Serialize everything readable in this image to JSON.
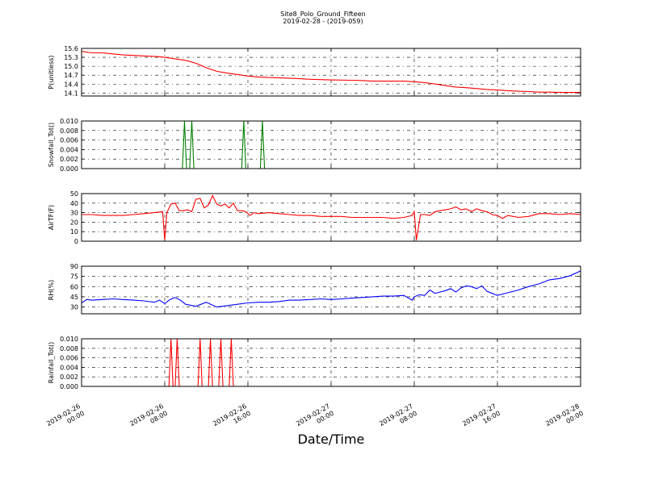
{
  "chart_data": {
    "title": "Site8_Polo_Ground_Fifteen",
    "subtitle": "2019-02-28 - (2019-059)",
    "xlabel": "Date/Time",
    "type": "line",
    "x_ticks": [
      [
        "2019-02-26",
        "00:00"
      ],
      [
        "2019-02-26",
        "08:00"
      ],
      [
        "2019-02-26",
        "16:00"
      ],
      [
        "2019-02-27",
        "00:00"
      ],
      [
        "2019-02-27",
        "08:00"
      ],
      [
        "2019-02-27",
        "16:00"
      ],
      [
        "2019-02-28",
        "00:00"
      ]
    ],
    "x_range_hours": [
      0,
      48
    ],
    "grid": true,
    "panels": [
      {
        "ylabel": "P(unitless)",
        "color": "#ff0000",
        "ylim": [
          14.0,
          15.6
        ],
        "yticks": [
          15.6,
          15.3,
          15.0,
          14.7,
          14.4,
          14.1
        ],
        "ytick_labels": [
          "15.6",
          "15.3",
          "15.0",
          "14.7",
          "14.4",
          "14.1"
        ],
        "x": [
          0,
          1,
          2,
          4,
          7.5,
          8,
          9,
          10,
          11,
          12,
          13,
          14,
          15,
          16,
          17,
          18,
          20,
          21,
          22,
          23,
          24,
          26,
          27,
          28,
          30,
          31,
          32,
          33,
          34,
          35,
          36,
          37,
          38,
          39,
          40,
          41,
          42,
          43,
          44,
          45,
          46,
          48
        ],
        "y": [
          15.5,
          15.45,
          15.45,
          15.38,
          15.32,
          15.3,
          15.25,
          15.2,
          15.1,
          14.95,
          14.83,
          14.77,
          14.72,
          14.67,
          14.64,
          14.62,
          14.6,
          14.58,
          14.56,
          14.55,
          14.54,
          14.53,
          14.52,
          14.5,
          14.5,
          14.5,
          14.48,
          14.45,
          14.4,
          14.35,
          14.3,
          14.28,
          14.25,
          14.22,
          14.2,
          14.18,
          14.16,
          14.15,
          14.13,
          14.13,
          14.12,
          14.12
        ]
      },
      {
        "ylabel": "Snowfall_Tot()",
        "color": "#008000",
        "ylim": [
          0,
          0.01
        ],
        "yticks": [
          0.01,
          0.008,
          0.006,
          0.004,
          0.002,
          0.0
        ],
        "ytick_labels": [
          "0.010",
          "0.008",
          "0.006",
          "0.004",
          "0.002",
          "0.000"
        ],
        "x": [
          0,
          9.7,
          9.9,
          10.1,
          10.4,
          10.6,
          10.8,
          15.4,
          15.6,
          15.8,
          17.2,
          17.4,
          17.6,
          48
        ],
        "y": [
          0,
          0,
          0.01,
          0,
          0,
          0.01,
          0,
          0,
          0.01,
          0,
          0,
          0.01,
          0,
          0
        ]
      },
      {
        "ylabel": "AirTF(F)",
        "color": "#ff0000",
        "ylim": [
          0,
          50
        ],
        "yticks": [
          50,
          40,
          30,
          20,
          10,
          0
        ],
        "ytick_labels": [
          "50",
          "40",
          "30",
          "20",
          "10",
          "0"
        ],
        "x": [
          0,
          1,
          2,
          3,
          4,
          5,
          6,
          7,
          7.8,
          8.0,
          8.2,
          8.6,
          9,
          9.4,
          9.8,
          10.2,
          10.6,
          11,
          11.4,
          11.8,
          12.2,
          12.6,
          13,
          13.4,
          13.8,
          14.2,
          14.6,
          15,
          15.4,
          15.8,
          16.2,
          16.6,
          17,
          18,
          19,
          20,
          21,
          22,
          23,
          24,
          25,
          26,
          27,
          28,
          29,
          30,
          31,
          31.8,
          32.0,
          32.2,
          32.6,
          33,
          33.5,
          34,
          34.5,
          35,
          35.5,
          36,
          36.5,
          37,
          37.5,
          38,
          38.5,
          39,
          39.5,
          40,
          40.5,
          41,
          42,
          43,
          44,
          45,
          46,
          47,
          48
        ],
        "y": [
          28,
          28,
          27,
          27,
          27,
          28,
          29,
          30,
          31,
          1,
          30,
          39,
          40,
          32,
          32,
          33,
          31,
          44,
          45,
          35,
          38,
          48,
          39,
          37,
          39,
          35,
          40,
          32,
          32,
          31,
          27,
          30,
          29,
          30,
          29,
          28,
          27,
          27,
          26,
          26,
          26,
          25,
          25,
          25,
          25,
          24,
          25,
          27,
          31,
          1,
          28,
          28,
          27,
          31,
          32,
          33,
          34,
          36,
          33,
          34,
          31,
          34,
          32,
          31,
          28,
          27,
          24,
          27,
          25,
          26,
          29,
          29,
          28,
          29,
          28
        ]
      },
      {
        "ylabel": "RH(%)",
        "color": "#0000ff",
        "ylim": [
          20,
          90
        ],
        "yticks": [
          90,
          75,
          60,
          45,
          30
        ],
        "ytick_labels": [
          "90",
          "75",
          "60",
          "45",
          "30"
        ],
        "x": [
          0,
          0.5,
          1,
          2,
          3,
          4,
          5,
          6,
          7,
          7.5,
          8,
          8.5,
          9,
          9.5,
          10,
          11,
          12,
          13,
          14,
          15,
          16,
          17,
          18,
          19,
          20,
          21,
          22,
          23,
          24,
          25,
          26,
          27,
          28,
          29,
          30,
          31,
          31.8,
          32,
          32.5,
          33,
          33.5,
          34,
          34.5,
          35,
          35.5,
          36,
          36.5,
          37,
          37.5,
          38,
          38.5,
          39,
          39.5,
          40,
          41,
          42,
          43,
          44,
          45,
          46,
          47,
          48
        ],
        "y": [
          36,
          41,
          40,
          41,
          42,
          41,
          40,
          39,
          37,
          40,
          35,
          41,
          44,
          40,
          34,
          31,
          37,
          30,
          32,
          34,
          36,
          37,
          37,
          38,
          40,
          40,
          41,
          42,
          41,
          42,
          43,
          44,
          45,
          46,
          46,
          47,
          40,
          45,
          48,
          47,
          55,
          50,
          52,
          54,
          57,
          52,
          58,
          61,
          60,
          57,
          61,
          53,
          50,
          47,
          51,
          55,
          60,
          64,
          70,
          72,
          76,
          83
        ]
      },
      {
        "ylabel": "Rainfall_Tot()",
        "color": "#ff0000",
        "ylim": [
          0,
          0.01
        ],
        "yticks": [
          0.01,
          0.008,
          0.006,
          0.004,
          0.002,
          0.0
        ],
        "ytick_labels": [
          "0.010",
          "0.008",
          "0.006",
          "0.004",
          "0.002",
          "0.000"
        ],
        "x": [
          0,
          8.4,
          8.6,
          8.8,
          9.0,
          9.2,
          9.4,
          11.2,
          11.4,
          11.6,
          12.2,
          12.4,
          12.6,
          13.2,
          13.4,
          13.6,
          14.2,
          14.4,
          14.6,
          48
        ],
        "y": [
          0,
          0,
          0.01,
          0,
          0,
          0.01,
          0,
          0,
          0.01,
          0,
          0,
          0.01,
          0,
          0,
          0.01,
          0,
          0,
          0.01,
          0,
          0
        ]
      }
    ]
  }
}
